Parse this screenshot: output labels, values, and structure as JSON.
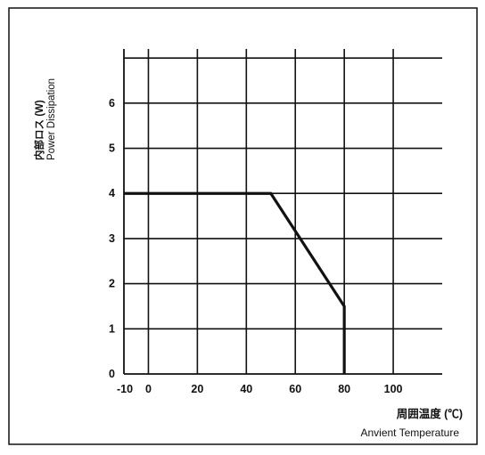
{
  "chart_data": {
    "type": "line",
    "title": "",
    "ylabel_jp": "内部ロス (W)",
    "ylabel": "Power Dissipation",
    "xlabel_jp": "周囲温度 (℃)",
    "xlabel": "Anvient Temperature",
    "xlim": [
      -10,
      120
    ],
    "ylim": [
      0,
      7.2
    ],
    "x_ticks": [
      {
        "value": -10,
        "label": "-10"
      },
      {
        "value": 0,
        "label": "0"
      },
      {
        "value": 20,
        "label": "20"
      },
      {
        "value": 40,
        "label": "40"
      },
      {
        "value": 60,
        "label": "60"
      },
      {
        "value": 80,
        "label": "80"
      },
      {
        "value": 100,
        "label": "100"
      }
    ],
    "y_ticks": [
      {
        "value": 0,
        "label": "0"
      },
      {
        "value": 1,
        "label": "1"
      },
      {
        "value": 2,
        "label": "2"
      },
      {
        "value": 3,
        "label": "3"
      },
      {
        "value": 4,
        "label": "4"
      },
      {
        "value": 5,
        "label": "5"
      },
      {
        "value": 6,
        "label": "6"
      }
    ],
    "v_grid": [
      0,
      20,
      40,
      60,
      80,
      100
    ],
    "h_grid": [
      1,
      2,
      3,
      4,
      5,
      6,
      7
    ],
    "grid": true,
    "series": [
      {
        "values": [
          {
            "x": -10,
            "y": 4.0
          },
          {
            "x": 50,
            "y": 4.0
          },
          {
            "x": 80,
            "y": 1.5
          },
          {
            "x": 80,
            "y": 0
          }
        ]
      }
    ]
  }
}
